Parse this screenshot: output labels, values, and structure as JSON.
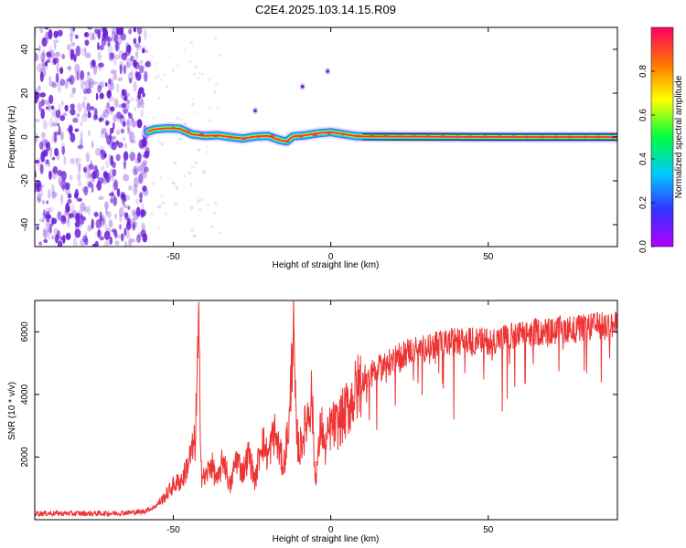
{
  "title": "C2E4.2025.103.14.15.R09",
  "colors": {
    "snr_line": "#ee3333",
    "axis": "#000000",
    "noise_dot": "#6a1fd6",
    "colorbar_stops": [
      "#b000ff",
      "#3333ff",
      "#00c8ff",
      "#00ff40",
      "#ffff00",
      "#ff7700",
      "#ff0066"
    ]
  },
  "chart_data": [
    {
      "type": "heatmap",
      "name": "spectrogram",
      "xlabel": "Height of straight line (km)",
      "ylabel": "Frequency (Hz)",
      "xlim": [
        -94,
        91
      ],
      "ylim": [
        -50,
        50
      ],
      "x_ticks": [
        -50,
        0,
        50
      ],
      "y_ticks": [
        -40,
        -20,
        0,
        20,
        40
      ],
      "grid": false,
      "noise_region_x": [
        -94,
        -58
      ],
      "isolated_blobs": [
        {
          "x": -24,
          "y": 12
        },
        {
          "x": -9,
          "y": 23
        },
        {
          "x": -1,
          "y": 30
        }
      ],
      "ridge": {
        "x": [
          -58,
          -56,
          -52,
          -48,
          -46,
          -44,
          -40,
          -36,
          -32,
          -28,
          -24,
          -20,
          -16,
          -14,
          -12,
          -8,
          -4,
          0,
          4,
          8,
          10,
          20,
          40,
          60,
          80,
          91
        ],
        "y": [
          2.5,
          3.5,
          4,
          3.8,
          2.5,
          1.2,
          0.5,
          0.8,
          0,
          -0.7,
          0.2,
          0.5,
          -1.5,
          -2,
          0.3,
          0.8,
          1.7,
          2.2,
          1.3,
          0.4,
          0.3,
          0.2,
          0.1,
          0,
          0,
          0
        ]
      },
      "colorbar": {
        "label": "Normalized spectral amplitude",
        "ticks": [
          "0.0",
          "0.2",
          "0.4",
          "0.6",
          "0.8"
        ],
        "range": [
          0,
          1
        ]
      }
    },
    {
      "type": "line",
      "name": "snr",
      "xlabel": "Height of straight line (km)",
      "ylabel": "SNR (10 * v/v)",
      "xlim": [
        -94,
        91
      ],
      "ylim": [
        0,
        7000
      ],
      "x_ticks": [
        -50,
        0,
        50
      ],
      "y_ticks": [
        2000,
        4000,
        6000
      ],
      "grid": false,
      "series": [
        {
          "x": [
            -94,
            -80,
            -70,
            -60,
            -56,
            -53,
            -50,
            -47,
            -45,
            -43,
            -42,
            -41,
            -40,
            -38,
            -36,
            -34,
            -32,
            -30,
            -28,
            -26,
            -24,
            -22,
            -20,
            -18,
            -15,
            -13,
            -12,
            -11,
            -10,
            -8,
            -6,
            -5,
            -4,
            -3,
            -2,
            0,
            2,
            5,
            10,
            15,
            20,
            25,
            30,
            35,
            40,
            45,
            50,
            55,
            60,
            65,
            70,
            75,
            80,
            85,
            91
          ],
          "y": [
            200,
            200,
            200,
            250,
            400,
            700,
            1100,
            1300,
            1900,
            2500,
            5900,
            1400,
            1300,
            1800,
            1200,
            2000,
            1000,
            2000,
            1500,
            2100,
            1200,
            2600,
            2000,
            2800,
            1700,
            3300,
            6400,
            2800,
            2200,
            3000,
            4000,
            1300,
            2000,
            3200,
            2200,
            3000,
            3000,
            3500,
            4500,
            4800,
            5100,
            5400,
            5500,
            5600,
            5700,
            5700,
            5700,
            5800,
            5900,
            6000,
            6000,
            6100,
            6100,
            6200,
            6200
          ]
        }
      ]
    }
  ]
}
